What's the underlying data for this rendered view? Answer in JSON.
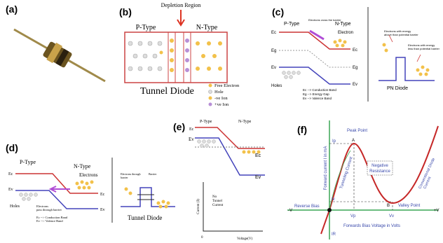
{
  "panels": [
    {
      "label": "(a)"
    },
    {
      "label": "(b)",
      "texts": [
        "Depletion Region",
        "P-Type",
        "N-Type",
        "Tunnel Diode",
        "Free Electron",
        "Hole",
        "-ve Ion",
        "+ve Ion"
      ]
    },
    {
      "label": "(c)",
      "texts": [
        "P-Type",
        "N-Type",
        "Electrons cross the barrier",
        "Electron",
        "Ec",
        "Eg",
        "Ev",
        "Ec",
        "Eg",
        "Ev",
        "Holes",
        "Ec --> Conduction Band",
        "Eg --> Energy Gap",
        "Ev --> Valence Band",
        "Electrons with energy",
        "above than potential barrier",
        "Electrons with energy",
        "less than potential barrier",
        "PN Diode"
      ]
    },
    {
      "label": "(d)",
      "texts": [
        "P-Type",
        "N-Type",
        "Ec",
        "Ev",
        "Electrons",
        "Ec",
        "Ev",
        "Holes",
        "Electrons",
        "pass through barrier",
        "Ec --> Conduction Band",
        "Ev --> Valence Band",
        "Electrons through",
        "barrier",
        "Barrier",
        "Tunnel Diode"
      ]
    },
    {
      "label": "(e)",
      "texts": [
        "P-Type",
        "N-Type",
        "Ec",
        "Ev",
        "Ec",
        "Ev",
        "Current (I)",
        "No",
        "Tunnel",
        "Current",
        "0",
        "Voltage(V)"
      ]
    },
    {
      "label": "(f)",
      "texts": [
        "Forward current I in mA",
        "Ip",
        "Peak Point",
        "A",
        "Negative",
        "Resistance",
        "Tunneling Current",
        "Conventional Diode",
        "Current",
        "Iv",
        "B",
        "Valley Point",
        "Vp",
        "Vv",
        "Reverse Bias",
        "-V",
        "+V",
        "Forwards Bias Voltage in Volts",
        "IR"
      ]
    }
  ]
}
